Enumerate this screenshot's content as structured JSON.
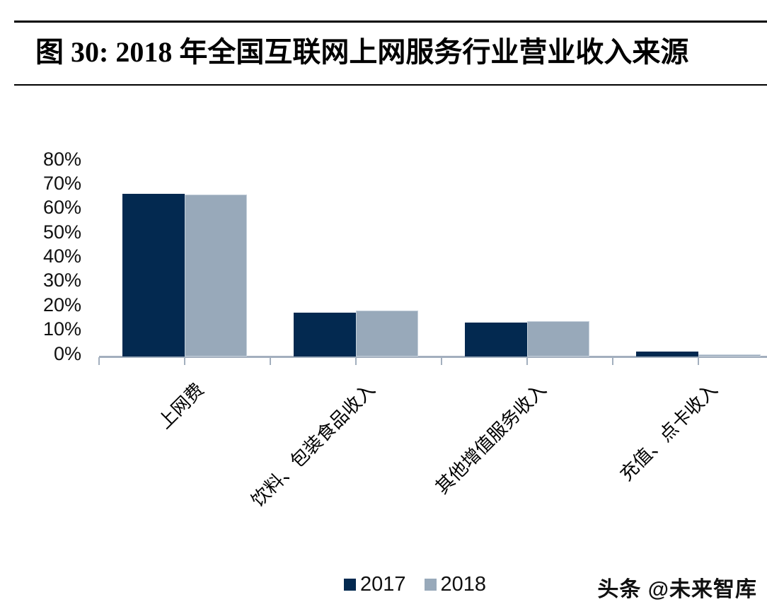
{
  "figure": {
    "title": "图 30:  2018 年全国互联网上网服务行业营业收入来源",
    "watermark": "头条 @未来智库"
  },
  "chart_data": {
    "type": "bar",
    "title": "2018 年全国互联网上网服务行业营业收入来源",
    "categories": [
      "上网费",
      "饮料、包装食品收入",
      "其他增值服务收入",
      "充值、点卡收入"
    ],
    "series": [
      {
        "name": "2017",
        "color": "#032950",
        "values": [
          67,
          18,
          14,
          2
        ]
      },
      {
        "name": "2018",
        "color": "#98A9BA",
        "values": [
          66.5,
          19,
          14.5,
          1
        ]
      }
    ],
    "xlabel": "",
    "ylabel": "",
    "ylim": [
      0,
      80
    ],
    "ytick_step": 10,
    "ytick_labels": [
      "80%",
      "70%",
      "60%",
      "50%",
      "40%",
      "30%",
      "20%",
      "10%",
      "0%"
    ],
    "grid": false,
    "legend_position": "bottom",
    "axis_color": "#A3AFBE",
    "bar_border_color_2018": "#C6D1DC"
  }
}
